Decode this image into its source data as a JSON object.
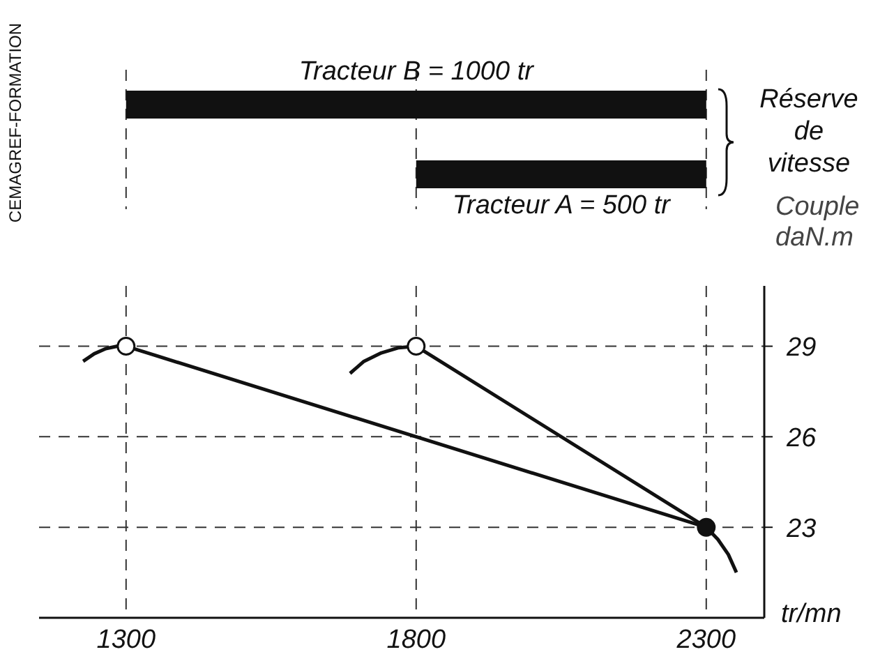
{
  "chart_data": [
    {
      "type": "bar",
      "orientation": "horizontal",
      "categories": [
        null,
        null
      ],
      "values": [
        1000,
        500
      ],
      "base": [
        1300,
        1800
      ],
      "colors": [
        "#111111",
        "#111111"
      ],
      "value_labels": [
        "Tracteur B = 1000 tr",
        "Tracteur A = 500 tr"
      ],
      "xticks": [
        1300,
        1800,
        2300
      ],
      "tick_labels": false,
      "grid": "x",
      "annotations": [
        "Réserve de vitesse"
      ]
    },
    {
      "type": "line",
      "xlabel": "tr/mn",
      "ylabel": "Couple daN.m",
      "xlim": [
        1150,
        2400
      ],
      "xticks": [
        1300,
        1800,
        2300
      ],
      "ylim": [
        20,
        31
      ],
      "yticks": [
        23,
        26,
        29
      ],
      "grid": true,
      "line_style": "solid",
      "annotations": [
        "CEMAGREF-FORMATION"
      ],
      "series": [
        {
          "type": "line",
          "color": "#111111",
          "x": [
            1226,
            1245,
            1265,
            1285,
            1300,
            2300,
            2320,
            2338,
            2352
          ],
          "values": [
            28.5,
            28.75,
            28.92,
            29,
            29,
            23,
            22.6,
            22.1,
            21.5
          ]
        },
        {
          "type": "line",
          "color": "#111111",
          "x": [
            1686,
            1710,
            1740,
            1770,
            1800,
            2300
          ],
          "values": [
            28.1,
            28.5,
            28.78,
            28.95,
            29,
            23
          ]
        },
        {
          "type": "scatter",
          "color": "#111111",
          "colors": [
            "#ffffff",
            "#ffffff",
            "#111111"
          ],
          "x": [
            1300,
            1800,
            2300
          ],
          "values": [
            29,
            29,
            23
          ]
        }
      ]
    }
  ]
}
